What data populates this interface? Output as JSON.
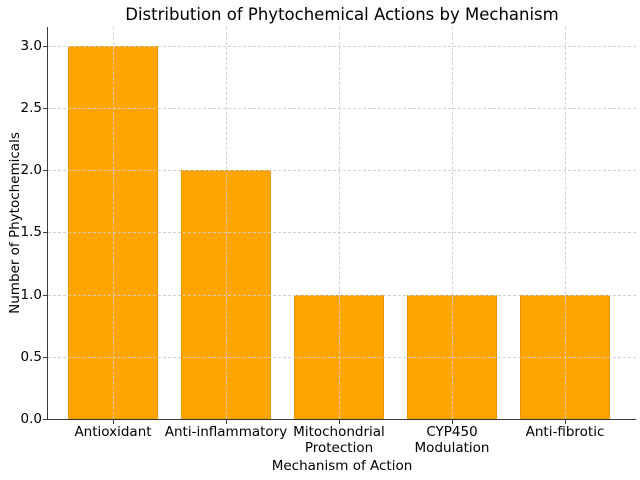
{
  "chart_data": {
    "type": "bar",
    "title": "Distribution of Phytochemical Actions by Mechanism",
    "xlabel": "Mechanism of Action",
    "ylabel": "Number of Phytochemicals",
    "categories": [
      "Antioxidant",
      "Anti-inflammatory",
      "Mitochondrial\nProtection",
      "CYP450\nModulation",
      "Anti-fibrotic"
    ],
    "values": [
      3,
      2,
      1,
      1,
      1
    ],
    "ytick_labels": [
      "0.0",
      "0.5",
      "1.0",
      "1.5",
      "2.0",
      "2.5",
      "3.0"
    ],
    "ytick_values": [
      0,
      0.5,
      1,
      1.5,
      2,
      2.5,
      3
    ],
    "ylim": [
      0,
      3.15
    ],
    "grid": true,
    "grid_axis": "both",
    "grid_style": "dashed",
    "grid_above_bars": true,
    "legend": null
  },
  "style": {
    "bar_fill": "#FFA500",
    "bar_edge": "#ED9400",
    "grid_color": "rgba(205,205,205,0.9)",
    "spine_color": "#3A3A3A",
    "text_color": "#000000",
    "background": "#FFFFFF"
  }
}
